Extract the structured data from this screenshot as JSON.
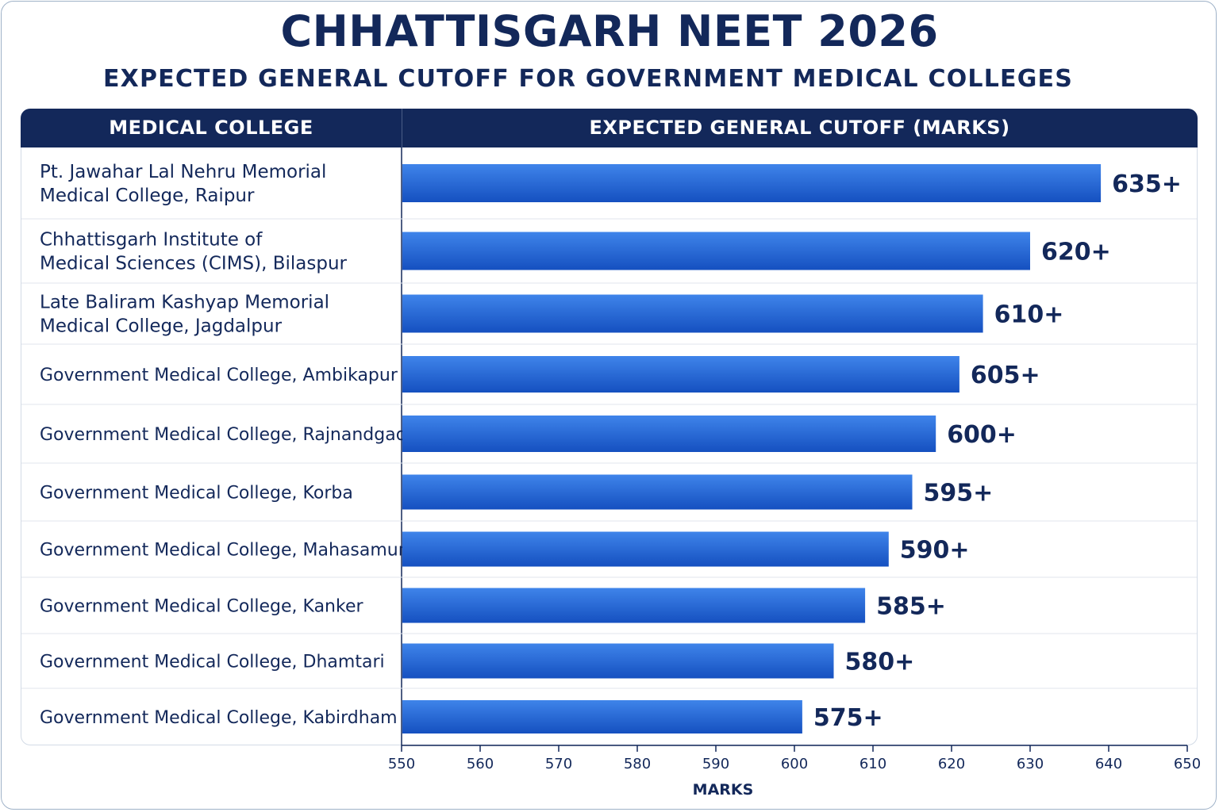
{
  "title": "CHHATTISGARH NEET 2026",
  "subtitle": "EXPECTED GENERAL CUTOFF FOR GOVERNMENT MEDICAL COLLEGES",
  "table_headers": {
    "left": "MEDICAL COLLEGE",
    "right": "EXPECTED GENERAL CUTOFF (MARKS)"
  },
  "colors": {
    "header_bg": "#13285a",
    "bar": "#1f64d2",
    "text": "#13285a"
  },
  "chart_data": {
    "type": "bar",
    "orientation": "horizontal",
    "categories": [
      [
        "Pt. Jawahar Lal Nehru Memorial",
        "Medical College, Raipur"
      ],
      [
        "Chhattisgarh Institute of",
        "Medical Sciences (CIMS), Bilaspur"
      ],
      [
        "Late Baliram Kashyap Memorial",
        "Medical College, Jagdalpur"
      ],
      [
        "Government Medical College, Ambikapur"
      ],
      [
        "Government Medical College, Rajnandgaon"
      ],
      [
        "Government Medical College, Korba"
      ],
      [
        "Government Medical College, Mahasamund"
      ],
      [
        "Government Medical College, Kanker"
      ],
      [
        "Government Medical College, Dhamtari"
      ],
      [
        "Government Medical College, Kabirdham"
      ]
    ],
    "values": [
      639,
      630,
      624,
      621,
      618,
      615,
      612,
      609,
      605,
      601
    ],
    "data_labels": [
      "635+",
      "620+",
      "610+",
      "605+",
      "600+",
      "595+",
      "590+",
      "585+",
      "580+",
      "575+"
    ],
    "xlabel": "MARKS",
    "xlim": [
      550,
      650
    ],
    "xticks": [
      "550",
      "560",
      "570",
      "580",
      "590",
      "600",
      "610",
      "620",
      "630",
      "640",
      "650"
    ],
    "grid": false
  }
}
